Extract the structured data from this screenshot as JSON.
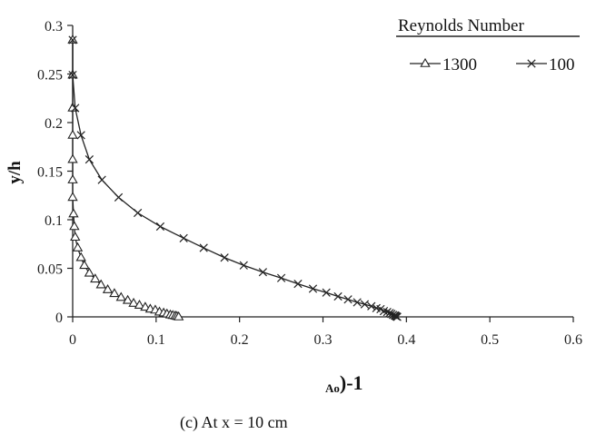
{
  "chart_data": {
    "type": "line",
    "xlabel_sub": "Ao",
    "xlabel_main": ")-1",
    "ylabel": "y/h",
    "xlim": [
      0,
      0.6
    ],
    "ylim": [
      0,
      0.3
    ],
    "x_ticks": [
      0,
      0.1,
      0.2,
      0.3,
      0.4,
      0.5,
      0.6
    ],
    "x_tick_labels": [
      "0",
      "0.1",
      "0.2",
      "0.3",
      "0.4",
      "0.5",
      "0.6"
    ],
    "y_ticks": [
      0,
      0.05,
      0.1,
      0.15,
      0.2,
      0.25,
      0.3
    ],
    "y_tick_labels": [
      "0",
      "0.05",
      "0.1",
      "0.15",
      "0.2",
      "0.25",
      "0.3"
    ],
    "grid": false,
    "legend_title": "Reynolds Number",
    "legend_position": "top-right",
    "caption": "(c) At x = 10 cm",
    "series": [
      {
        "name": "1300",
        "marker": "triangle",
        "color": "#222222",
        "points": [
          [
            0.0,
            0.285
          ],
          [
            0.0,
            0.249
          ],
          [
            0.0,
            0.215
          ],
          [
            0.0,
            0.187
          ],
          [
            0.0,
            0.162
          ],
          [
            0.0,
            0.141
          ],
          [
            0.0,
            0.123
          ],
          [
            0.001,
            0.106
          ],
          [
            0.002,
            0.093
          ],
          [
            0.003,
            0.082
          ],
          [
            0.006,
            0.071
          ],
          [
            0.01,
            0.061
          ],
          [
            0.014,
            0.053
          ],
          [
            0.02,
            0.045
          ],
          [
            0.027,
            0.039
          ],
          [
            0.034,
            0.033
          ],
          [
            0.042,
            0.028
          ],
          [
            0.05,
            0.024
          ],
          [
            0.058,
            0.02
          ],
          [
            0.066,
            0.017
          ],
          [
            0.073,
            0.014
          ],
          [
            0.08,
            0.012
          ],
          [
            0.087,
            0.01
          ],
          [
            0.093,
            0.008
          ],
          [
            0.099,
            0.007
          ],
          [
            0.104,
            0.005
          ],
          [
            0.109,
            0.004
          ],
          [
            0.113,
            0.003
          ],
          [
            0.117,
            0.002
          ],
          [
            0.12,
            0.0015
          ],
          [
            0.123,
            0.001
          ],
          [
            0.125,
            0.0005
          ],
          [
            0.127,
            0.0
          ]
        ]
      },
      {
        "name": "100",
        "marker": "cross",
        "color": "#222222",
        "points": [
          [
            0.0,
            0.285
          ],
          [
            0.0,
            0.249
          ],
          [
            0.003,
            0.215
          ],
          [
            0.01,
            0.187
          ],
          [
            0.02,
            0.162
          ],
          [
            0.035,
            0.141
          ],
          [
            0.055,
            0.123
          ],
          [
            0.078,
            0.107
          ],
          [
            0.105,
            0.093
          ],
          [
            0.133,
            0.081
          ],
          [
            0.157,
            0.071
          ],
          [
            0.182,
            0.061
          ],
          [
            0.205,
            0.053
          ],
          [
            0.228,
            0.046
          ],
          [
            0.25,
            0.04
          ],
          [
            0.27,
            0.034
          ],
          [
            0.288,
            0.029
          ],
          [
            0.304,
            0.025
          ],
          [
            0.318,
            0.021
          ],
          [
            0.33,
            0.018
          ],
          [
            0.341,
            0.015
          ],
          [
            0.35,
            0.013
          ],
          [
            0.358,
            0.011
          ],
          [
            0.364,
            0.009
          ],
          [
            0.369,
            0.008
          ],
          [
            0.373,
            0.006
          ],
          [
            0.377,
            0.005
          ],
          [
            0.38,
            0.004
          ],
          [
            0.382,
            0.003
          ],
          [
            0.384,
            0.002
          ],
          [
            0.386,
            0.0015
          ],
          [
            0.387,
            0.001
          ],
          [
            0.388,
            0.0005
          ],
          [
            0.389,
            0.0
          ]
        ]
      }
    ]
  }
}
